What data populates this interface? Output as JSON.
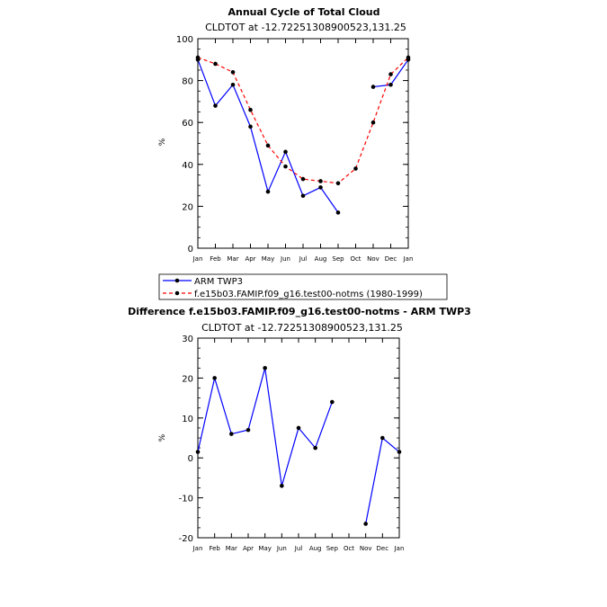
{
  "chart_data": [
    {
      "type": "line",
      "title": "Annual Cycle of Total Cloud",
      "subtitle": "CLDTOT at -12.72251308900523,131.25",
      "ylabel": "%",
      "categories": [
        "Jan",
        "Feb",
        "Mar",
        "Apr",
        "May",
        "Jun",
        "Jul",
        "Aug",
        "Sep",
        "Oct",
        "Nov",
        "Dec",
        "Jan"
      ],
      "ylim": [
        0,
        100
      ],
      "yticks": [
        0,
        20,
        40,
        60,
        80,
        100
      ],
      "series": [
        {
          "name": "ARM TWP3",
          "color": "#0000ff",
          "dash": "solid",
          "values": [
            90,
            68,
            78,
            58,
            27,
            46,
            25,
            29,
            17,
            null,
            77,
            78,
            90
          ]
        },
        {
          "name": "f.e15b03.FAMIP.f09_g16.test00-notms (1980-1999)",
          "color": "#ff0000",
          "dash": "dashed",
          "values": [
            91,
            88,
            84,
            66,
            49,
            39,
            33,
            32,
            31,
            38,
            60,
            83,
            91
          ]
        }
      ],
      "legend": "below"
    },
    {
      "type": "line",
      "title": "Difference f.e15b03.FAMIP.f09_g16.test00-notms - ARM TWP3",
      "subtitle": "CLDTOT at -12.72251308900523,131.25",
      "ylabel": "%",
      "categories": [
        "Jan",
        "Feb",
        "Mar",
        "Apr",
        "May",
        "Jun",
        "Jul",
        "Aug",
        "Sep",
        "Oct",
        "Nov",
        "Dec",
        "Jan"
      ],
      "ylim": [
        -20,
        30
      ],
      "yticks": [
        -20,
        -10,
        0,
        10,
        20,
        30
      ],
      "series": [
        {
          "color": "#0000ff",
          "dash": "solid",
          "values": [
            1.5,
            20,
            6,
            7,
            22.5,
            -7,
            7.5,
            2.5,
            14,
            null,
            -16.5,
            5,
            1.5
          ]
        }
      ]
    }
  ]
}
